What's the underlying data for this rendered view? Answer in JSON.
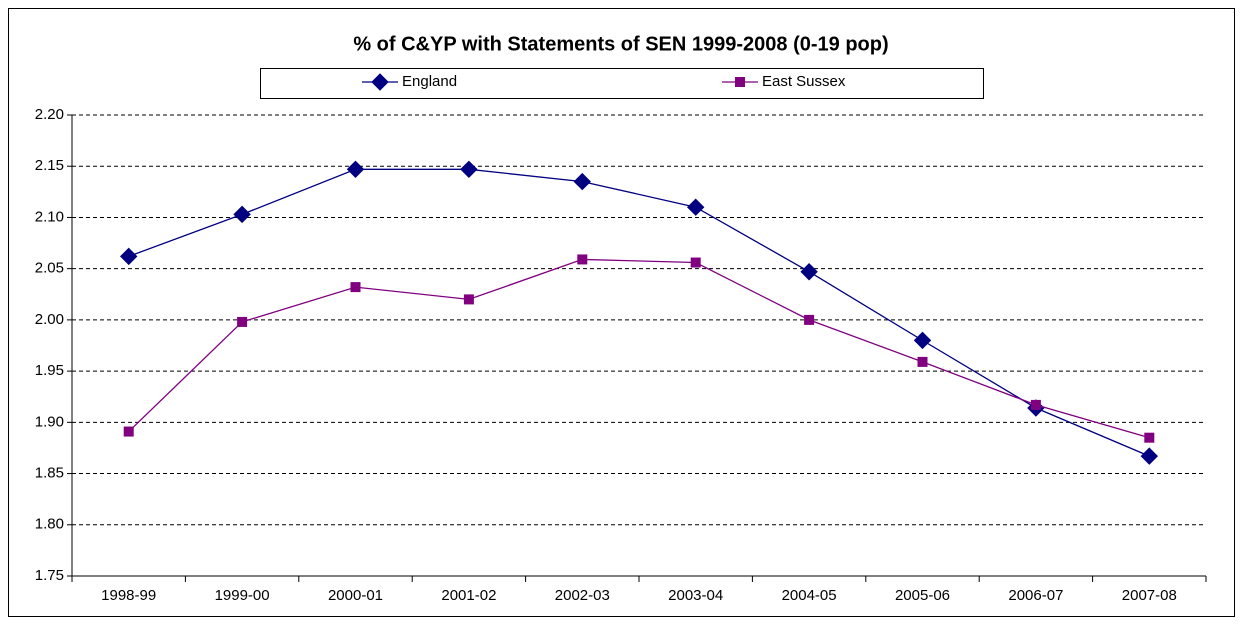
{
  "chart_data": {
    "type": "line",
    "title": "% of C&YP with Statements of SEN 1999-2008 (0-19 pop)",
    "categories": [
      "1998-99",
      "1999-00",
      "2000-01",
      "2001-02",
      "2002-03",
      "2003-04",
      "2004-05",
      "2005-06",
      "2006-07",
      "2007-08"
    ],
    "series": [
      {
        "name": "England",
        "color": "#000080",
        "marker": "diamond",
        "values": [
          2.062,
          2.103,
          2.147,
          2.147,
          2.135,
          2.11,
          2.047,
          1.98,
          1.914,
          1.867
        ]
      },
      {
        "name": "East Sussex",
        "color": "#800080",
        "marker": "square",
        "values": [
          1.891,
          1.998,
          2.032,
          2.02,
          2.059,
          2.056,
          2.0,
          1.959,
          1.917,
          1.885
        ]
      }
    ],
    "ylim": [
      1.75,
      2.2
    ],
    "yticks": [
      1.75,
      {
        "value": 1.8,
        "label": "1.80"
      },
      1.85,
      {
        "value": 1.9,
        "label": "1.90"
      },
      1.95,
      {
        "value": 2.0,
        "label": "2.00"
      },
      2.05,
      {
        "value": 2.1,
        "label": "2.10"
      },
      2.15,
      {
        "value": 2.2,
        "label": "2.20"
      }
    ],
    "grid": true,
    "legend": "top"
  }
}
